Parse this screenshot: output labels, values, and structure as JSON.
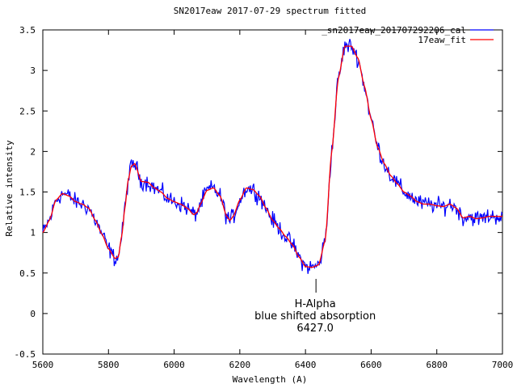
{
  "chart_data": {
    "type": "line",
    "title": "SN2017eaw 2017-07-29 spectrum fitted",
    "xlabel": "Wavelength (A)",
    "ylabel": "Relative intensity",
    "xlim": [
      5600,
      7000
    ],
    "ylim": [
      -0.5,
      3.5
    ],
    "xticks": [
      5600,
      5800,
      6000,
      6200,
      6400,
      6600,
      6800,
      7000
    ],
    "xtick_labels": [
      "5600",
      "5800",
      "6000",
      "6200",
      "6400",
      "6600",
      "6800",
      "7000"
    ],
    "yticks": [
      -0.5,
      0,
      0.5,
      1,
      1.5,
      2,
      2.5,
      3,
      3.5
    ],
    "ytick_labels": [
      "-0.5",
      "0",
      "0.5",
      "1",
      "1.5",
      "2",
      "2.5",
      "3",
      "3.5"
    ],
    "grid": false,
    "legend_position": "top-right",
    "series": [
      {
        "name": "_sn2017eaw_201707292206_cal",
        "color": "#0000ff",
        "kind": "observed",
        "noise_sigma": 0.05
      },
      {
        "name": "17eaw_fit",
        "color": "#ff0000",
        "kind": "fit",
        "x": [
          5600,
          5620,
          5640,
          5660,
          5680,
          5700,
          5720,
          5740,
          5760,
          5780,
          5800,
          5820,
          5830,
          5840,
          5850,
          5860,
          5870,
          5880,
          5900,
          5920,
          5940,
          5960,
          5980,
          6000,
          6020,
          6040,
          6060,
          6070,
          6080,
          6100,
          6120,
          6140,
          6160,
          6170,
          6180,
          6200,
          6220,
          6240,
          6260,
          6280,
          6300,
          6320,
          6340,
          6360,
          6380,
          6400,
          6420,
          6440,
          6460,
          6480,
          6500,
          6520,
          6540,
          6560,
          6580,
          6600,
          6620,
          6640,
          6660,
          6680,
          6700,
          6720,
          6740,
          6760,
          6780,
          6800,
          6820,
          6840,
          6860,
          6880,
          6900,
          6920,
          6940,
          6960,
          6980,
          7000
        ],
        "y": [
          1.0,
          1.15,
          1.4,
          1.48,
          1.45,
          1.38,
          1.35,
          1.3,
          1.15,
          0.98,
          0.8,
          0.68,
          0.7,
          0.95,
          1.3,
          1.65,
          1.82,
          1.85,
          1.63,
          1.62,
          1.55,
          1.5,
          1.42,
          1.38,
          1.35,
          1.3,
          1.22,
          1.25,
          1.35,
          1.52,
          1.55,
          1.45,
          1.2,
          1.15,
          1.2,
          1.4,
          1.55,
          1.53,
          1.45,
          1.3,
          1.15,
          1.05,
          0.95,
          0.85,
          0.7,
          0.58,
          0.57,
          0.6,
          0.9,
          2.0,
          2.9,
          3.3,
          3.3,
          3.15,
          2.8,
          2.4,
          2.05,
          1.85,
          1.7,
          1.6,
          1.5,
          1.45,
          1.38,
          1.35,
          1.35,
          1.33,
          1.32,
          1.35,
          1.3,
          1.18,
          1.2,
          1.17,
          1.18,
          1.2,
          1.2,
          1.2
        ]
      }
    ],
    "annotations": [
      {
        "x": 6432,
        "lines": [
          "H-Alpha",
          "blue shifted absorption",
          "6427.0"
        ]
      }
    ]
  }
}
